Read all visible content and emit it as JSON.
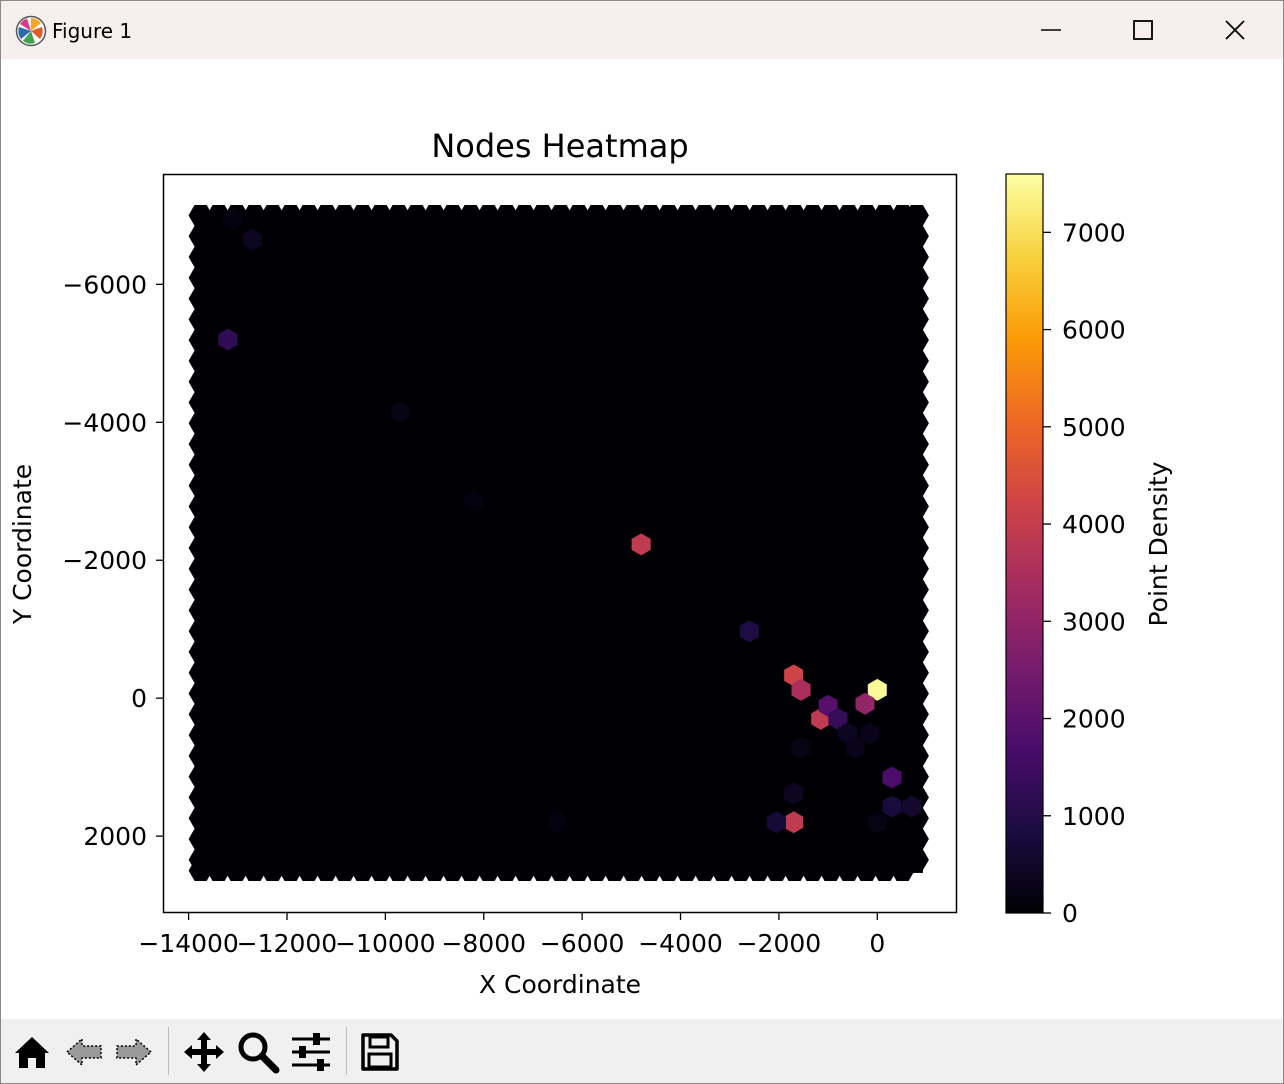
{
  "window": {
    "title": "Figure 1",
    "minimize_icon": "minimize-icon",
    "maximize_icon": "maximize-icon",
    "close_icon": "close-icon",
    "app_icon": "matplotlib-logo-icon"
  },
  "toolbar": {
    "buttons": [
      {
        "name": "home-button",
        "icon": "home-icon"
      },
      {
        "name": "back-button",
        "icon": "back-arrow-icon"
      },
      {
        "name": "forward-button",
        "icon": "forward-arrow-icon"
      },
      {
        "name": "pan-button",
        "icon": "move-icon"
      },
      {
        "name": "zoom-button",
        "icon": "magnifier-icon"
      },
      {
        "name": "configure-subplots-button",
        "icon": "sliders-icon"
      },
      {
        "name": "save-button",
        "icon": "floppy-disk-icon"
      }
    ]
  },
  "chart_data": {
    "type": "heatmap",
    "subtype": "hexbin",
    "title": "Nodes Heatmap",
    "xlabel": "X Coordinate",
    "ylabel": "Y Coordinate",
    "xlim": [
      -14500,
      1600
    ],
    "ylim": [
      3100,
      -7600
    ],
    "y_inverted": true,
    "xticks": [
      -14000,
      -12000,
      -10000,
      -8000,
      -6000,
      -4000,
      -2000,
      0
    ],
    "xtick_labels": [
      "−14000",
      "−12000",
      "−10000",
      "−8000",
      "−6000",
      "−4000",
      "−2000",
      "0"
    ],
    "yticks": [
      -6000,
      -4000,
      -2000,
      0,
      2000
    ],
    "ytick_labels": [
      "−6000",
      "−4000",
      "−2000",
      "0",
      "2000"
    ],
    "hex_extent": {
      "x": [
        -14000,
        1050
      ],
      "y": [
        -7150,
        2650
      ]
    },
    "background_value": 0,
    "colormap": "inferno",
    "colorbar": {
      "label": "Point Density",
      "range": [
        0,
        7600
      ],
      "ticks": [
        0,
        1000,
        2000,
        3000,
        4000,
        5000,
        6000,
        7000
      ],
      "tick_labels": [
        "0",
        "1000",
        "2000",
        "3000",
        "4000",
        "5000",
        "6000",
        "7000"
      ],
      "stops": [
        "#000004",
        "#1b0c41",
        "#4a0c6b",
        "#781c6d",
        "#a52c60",
        "#cf4446",
        "#ed6925",
        "#fb9b06",
        "#f7d13d",
        "#fcffa4"
      ]
    },
    "points": [
      {
        "x": 0,
        "y": -120,
        "value": 7500
      },
      {
        "x": -4800,
        "y": -2230,
        "value": 3900
      },
      {
        "x": -1700,
        "y": 1800,
        "value": 3900
      },
      {
        "x": -1150,
        "y": 300,
        "value": 3900
      },
      {
        "x": -1700,
        "y": -330,
        "value": 4200
      },
      {
        "x": -1550,
        "y": -120,
        "value": 3500
      },
      {
        "x": -250,
        "y": 80,
        "value": 3000
      },
      {
        "x": -1000,
        "y": 110,
        "value": 1900
      },
      {
        "x": 300,
        "y": 1150,
        "value": 1700
      },
      {
        "x": -800,
        "y": 300,
        "value": 1300
      },
      {
        "x": -13200,
        "y": -5200,
        "value": 1200
      },
      {
        "x": -2600,
        "y": -970,
        "value": 900
      },
      {
        "x": 300,
        "y": 1570,
        "value": 800
      },
      {
        "x": 700,
        "y": 1570,
        "value": 600
      },
      {
        "x": -2050,
        "y": 1800,
        "value": 700
      },
      {
        "x": -1700,
        "y": 1380,
        "value": 400
      },
      {
        "x": -600,
        "y": 510,
        "value": 400
      },
      {
        "x": -450,
        "y": 720,
        "value": 300
      },
      {
        "x": -150,
        "y": 510,
        "value": 300
      },
      {
        "x": -1550,
        "y": 720,
        "value": 200
      },
      {
        "x": -12700,
        "y": -6650,
        "value": 400
      },
      {
        "x": -9700,
        "y": -4150,
        "value": 200
      },
      {
        "x": -13100,
        "y": -6950,
        "value": 150
      },
      {
        "x": -8200,
        "y": -2850,
        "value": 150
      },
      {
        "x": -6500,
        "y": 1800,
        "value": 150
      },
      {
        "x": 0,
        "y": 1800,
        "value": 200
      }
    ]
  }
}
